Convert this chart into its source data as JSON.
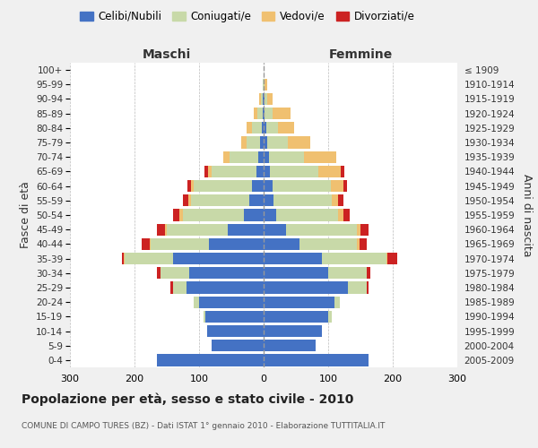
{
  "age_groups": [
    "0-4",
    "5-9",
    "10-14",
    "15-19",
    "20-24",
    "25-29",
    "30-34",
    "35-39",
    "40-44",
    "45-49",
    "50-54",
    "55-59",
    "60-64",
    "65-69",
    "70-74",
    "75-79",
    "80-84",
    "85-89",
    "90-94",
    "95-99",
    "100+"
  ],
  "birth_years": [
    "2005-2009",
    "2000-2004",
    "1995-1999",
    "1990-1994",
    "1985-1989",
    "1980-1984",
    "1975-1979",
    "1970-1974",
    "1965-1969",
    "1960-1964",
    "1955-1959",
    "1950-1954",
    "1945-1949",
    "1940-1944",
    "1935-1939",
    "1930-1934",
    "1925-1929",
    "1920-1924",
    "1915-1919",
    "1910-1914",
    "≤ 1909"
  ],
  "maschi": {
    "celibi": [
      165,
      80,
      88,
      90,
      100,
      120,
      115,
      140,
      85,
      55,
      30,
      22,
      18,
      11,
      8,
      5,
      3,
      2,
      1,
      0,
      0
    ],
    "coniugati": [
      0,
      0,
      0,
      3,
      8,
      20,
      45,
      75,
      90,
      95,
      95,
      90,
      90,
      70,
      45,
      22,
      15,
      8,
      3,
      1,
      0
    ],
    "vedovi": [
      0,
      0,
      0,
      0,
      0,
      0,
      0,
      2,
      2,
      3,
      5,
      5,
      5,
      5,
      10,
      8,
      8,
      5,
      3,
      1,
      0
    ],
    "divorziati": [
      0,
      0,
      0,
      0,
      0,
      5,
      5,
      3,
      12,
      12,
      10,
      8,
      5,
      5,
      0,
      0,
      0,
      0,
      0,
      0,
      0
    ]
  },
  "femmine": {
    "nubili": [
      162,
      80,
      90,
      100,
      110,
      130,
      100,
      90,
      55,
      35,
      20,
      15,
      14,
      10,
      8,
      5,
      4,
      2,
      1,
      0,
      0
    ],
    "coniugate": [
      0,
      0,
      0,
      5,
      8,
      30,
      60,
      100,
      90,
      110,
      95,
      90,
      90,
      75,
      55,
      32,
      18,
      12,
      5,
      2,
      0
    ],
    "vedove": [
      0,
      0,
      0,
      0,
      0,
      0,
      0,
      2,
      3,
      5,
      8,
      10,
      20,
      35,
      50,
      35,
      25,
      28,
      8,
      3,
      0
    ],
    "divorziate": [
      0,
      0,
      0,
      0,
      0,
      3,
      5,
      15,
      12,
      12,
      10,
      8,
      5,
      5,
      0,
      0,
      0,
      0,
      0,
      0,
      0
    ]
  },
  "colors": {
    "celibe": "#4472C4",
    "coniugato": "#C8D9A8",
    "vedovo": "#F0C070",
    "divorziato": "#CC2222"
  },
  "xlim": 300,
  "title": "Popolazione per età, sesso e stato civile - 2010",
  "subtitle": "COMUNE DI CAMPO TURES (BZ) - Dati ISTAT 1° gennaio 2010 - Elaborazione TUTTITALIA.IT",
  "ylabel_left": "Fasce di età",
  "ylabel_right": "Anni di nascita",
  "xlabel_maschi": "Maschi",
  "xlabel_femmine": "Femmine",
  "bg_color": "#f0f0f0",
  "plot_bg_color": "#ffffff"
}
